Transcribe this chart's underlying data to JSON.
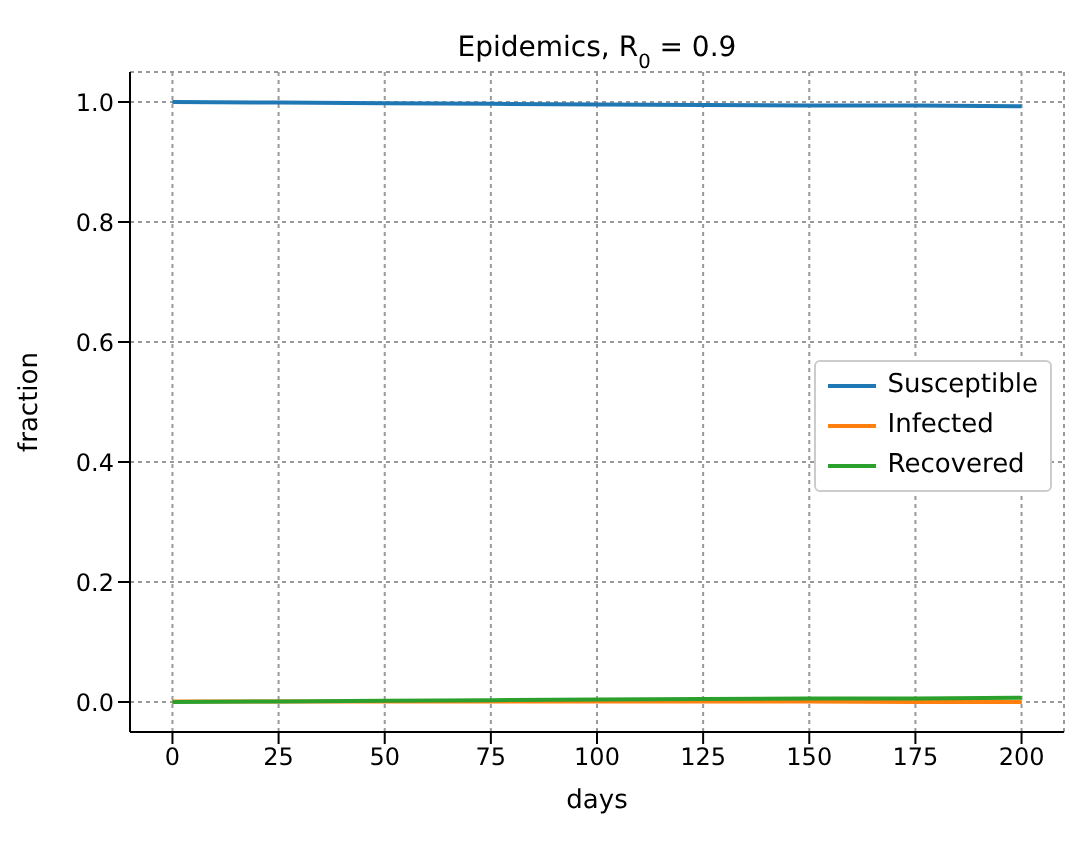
{
  "chart_data": {
    "type": "line",
    "title": "Epidemics, R$_{0}$ = 0.9",
    "xlabel": "days",
    "ylabel": "fraction",
    "x": [
      0,
      25,
      50,
      75,
      100,
      125,
      150,
      175,
      200
    ],
    "series": [
      {
        "name": "Susceptible",
        "color": "#1f77b4",
        "values": [
          1.0,
          0.999,
          0.998,
          0.997,
          0.996,
          0.995,
          0.994,
          0.994,
          0.993
        ]
      },
      {
        "name": "Infected",
        "color": "#ff7f0e",
        "values": [
          0.001,
          0.001,
          0.001,
          0.001,
          0.001,
          0.001,
          0.001,
          0.0,
          0.0
        ]
      },
      {
        "name": "Recovered",
        "color": "#2ca02c",
        "values": [
          0,
          0.001,
          0.002,
          0.003,
          0.004,
          0.005,
          0.006,
          0.006,
          0.007
        ]
      }
    ],
    "xlim": [
      -10,
      210
    ],
    "xticks": [
      0,
      25,
      50,
      75,
      100,
      125,
      150,
      175,
      200
    ],
    "ylim": [
      -0.05,
      1.05
    ],
    "yticks": [
      {
        "value": 0,
        "label": "0.0"
      },
      0.2,
      0.4,
      0.6,
      0.8,
      {
        "value": 1,
        "label": "1.0"
      }
    ],
    "grid": true,
    "legend": "right",
    "marker": "none",
    "line_style": "solid"
  }
}
